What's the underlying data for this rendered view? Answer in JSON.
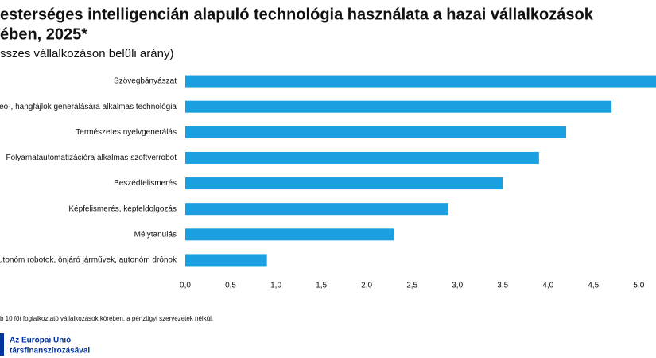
{
  "chart_data": {
    "type": "barh",
    "title": "esterséges intelligencián alapuló technológia használata a hazai vállalkozások",
    "title_line2": "ében, 2025*",
    "subtitle": "sszes vállalkozáson belüli arány)",
    "categories": [
      "Szövegbányászat",
      "eo-, hangfájlok generálására alkalmas technológia",
      "Természetes nyelvgenerálás",
      "Folyamatautomatizációra alkalmas szoftverrobot",
      "Beszédfelismerés",
      "Képfelismerés, képfeldolgozás",
      "Mélytanulás",
      "utonóm robotok, önjáró járművek, autonóm drónok"
    ],
    "values": [
      5.4,
      4.7,
      4.2,
      3.9,
      3.5,
      2.9,
      2.3,
      0.9
    ],
    "color": "#1a9fe0",
    "xlim": [
      0,
      5.19
    ],
    "xticks": [
      {
        "value": 0,
        "label": "0,0"
      },
      {
        "value": 0.5,
        "label": "0,5"
      },
      {
        "value": 1,
        "label": "1,0"
      },
      {
        "value": 1.5,
        "label": "1,5"
      },
      {
        "value": 2,
        "label": "2,0"
      },
      {
        "value": 2.5,
        "label": "2,5"
      },
      {
        "value": 3,
        "label": "3,0"
      },
      {
        "value": 3.5,
        "label": "3,5"
      },
      {
        "value": 4,
        "label": "4,0"
      },
      {
        "value": 4.5,
        "label": "4,5"
      },
      {
        "value": 5,
        "label": "5,0"
      }
    ],
    "footnote": "b 10 főt foglalkoztató vállalkozások körében, a pénzügyi szervezetek nélkül.",
    "logo_line1": "Az Európai Unió",
    "logo_line2": "társfinanszírozásával"
  }
}
